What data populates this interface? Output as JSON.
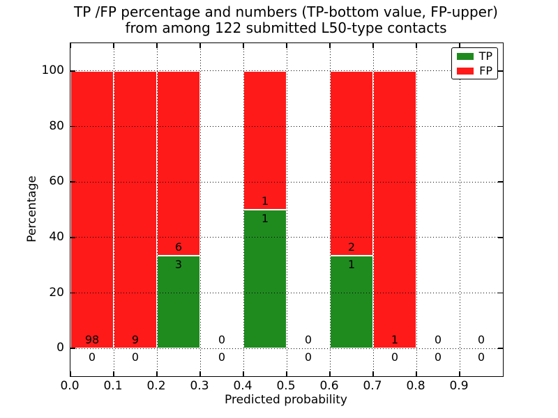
{
  "figure": {
    "title_line1": "TP /FP percentage and numbers (TP-bottom value, FP-upper)",
    "title_line2": "from among 122 submitted L50-type contacts"
  },
  "chart_data": {
    "type": "bar",
    "stacked": true,
    "title": "TP /FP percentage and numbers (TP-bottom value, FP-upper)\nfrom among 122 submitted L50-type contacts",
    "xlabel": "Predicted probability",
    "ylabel": "Percentage",
    "xlim": [
      0.0,
      1.0
    ],
    "ylim": [
      -10,
      110
    ],
    "grid": {
      "on": true,
      "style": "dotted",
      "color": "#000000"
    },
    "x_tick_values": [
      0.0,
      0.1,
      0.2,
      0.3,
      0.4,
      0.5,
      0.6,
      0.7,
      0.8,
      0.9
    ],
    "x_tick_labels": [
      "0.0",
      "0.1",
      "0.2",
      "0.3",
      "0.4",
      "0.5",
      "0.6",
      "0.7",
      "0.8",
      "0.9"
    ],
    "y_tick_values": [
      0,
      20,
      40,
      60,
      80,
      100
    ],
    "y_tick_labels": [
      "0",
      "20",
      "40",
      "60",
      "80",
      "100"
    ],
    "colors": {
      "tp": "#1f8b1f",
      "fp": "#ff1a1a"
    },
    "legend": {
      "position": "upper right",
      "entries": [
        {
          "label": "TP",
          "color": "#1f8b1f"
        },
        {
          "label": "FP",
          "color": "#ff1a1a"
        }
      ]
    },
    "bins": [
      {
        "range": [
          0.0,
          0.1
        ],
        "tp_count": 0,
        "fp_count": 98,
        "tp_pct": 0,
        "fp_pct": 100
      },
      {
        "range": [
          0.1,
          0.2
        ],
        "tp_count": 0,
        "fp_count": 9,
        "tp_pct": 0,
        "fp_pct": 100
      },
      {
        "range": [
          0.2,
          0.3
        ],
        "tp_count": 3,
        "fp_count": 6,
        "tp_pct": 33.33,
        "fp_pct": 66.67
      },
      {
        "range": [
          0.3,
          0.4
        ],
        "tp_count": 0,
        "fp_count": 0,
        "tp_pct": 0,
        "fp_pct": 0
      },
      {
        "range": [
          0.4,
          0.5
        ],
        "tp_count": 1,
        "fp_count": 1,
        "tp_pct": 50,
        "fp_pct": 50
      },
      {
        "range": [
          0.5,
          0.6
        ],
        "tp_count": 0,
        "fp_count": 0,
        "tp_pct": 0,
        "fp_pct": 0
      },
      {
        "range": [
          0.6,
          0.7
        ],
        "tp_count": 1,
        "fp_count": 2,
        "tp_pct": 33.33,
        "fp_pct": 66.67
      },
      {
        "range": [
          0.7,
          0.8
        ],
        "tp_count": 0,
        "fp_count": 1,
        "tp_pct": 0,
        "fp_pct": 100
      },
      {
        "range": [
          0.8,
          0.9
        ],
        "tp_count": 0,
        "fp_count": 0,
        "tp_pct": 0,
        "fp_pct": 0
      },
      {
        "range": [
          0.9,
          1.0
        ],
        "tp_count": 0,
        "fp_count": 0,
        "tp_pct": 0,
        "fp_pct": 0
      }
    ]
  }
}
